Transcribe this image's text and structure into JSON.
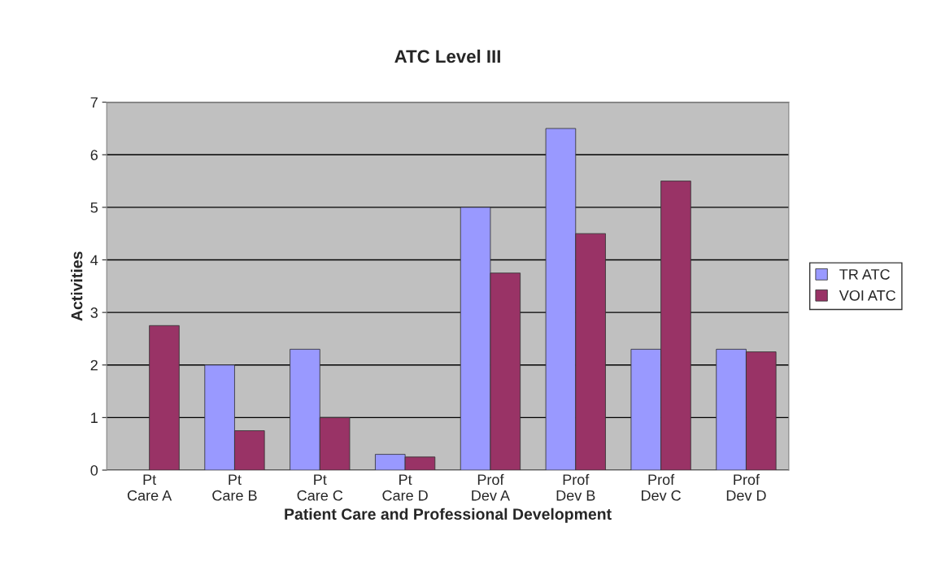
{
  "chart_data": {
    "type": "bar",
    "title": "ATC Level III",
    "xlabel": "Patient Care and Professional Development",
    "ylabel": "Activities",
    "categories": [
      "Pt\nCare A",
      "Pt\nCare B",
      "Pt\nCare C",
      "Pt\nCare D",
      "Prof\nDev A",
      "Prof\nDev B",
      "Prof\nDev C",
      "Prof\nDev D"
    ],
    "series": [
      {
        "name": "TR ATC",
        "color": "#9999ff",
        "values": [
          null,
          2,
          2.3,
          0.3,
          5,
          6.5,
          2.3,
          2.3
        ]
      },
      {
        "name": "VOI ATC",
        "color": "#993366",
        "values": [
          2.75,
          0.75,
          1,
          0.25,
          3.75,
          4.5,
          5.5,
          2.25
        ]
      }
    ],
    "ylim": [
      0,
      7
    ],
    "yticks": [
      0,
      1,
      2,
      3,
      4,
      5,
      6,
      7
    ],
    "grid": "y",
    "legend": "right"
  }
}
